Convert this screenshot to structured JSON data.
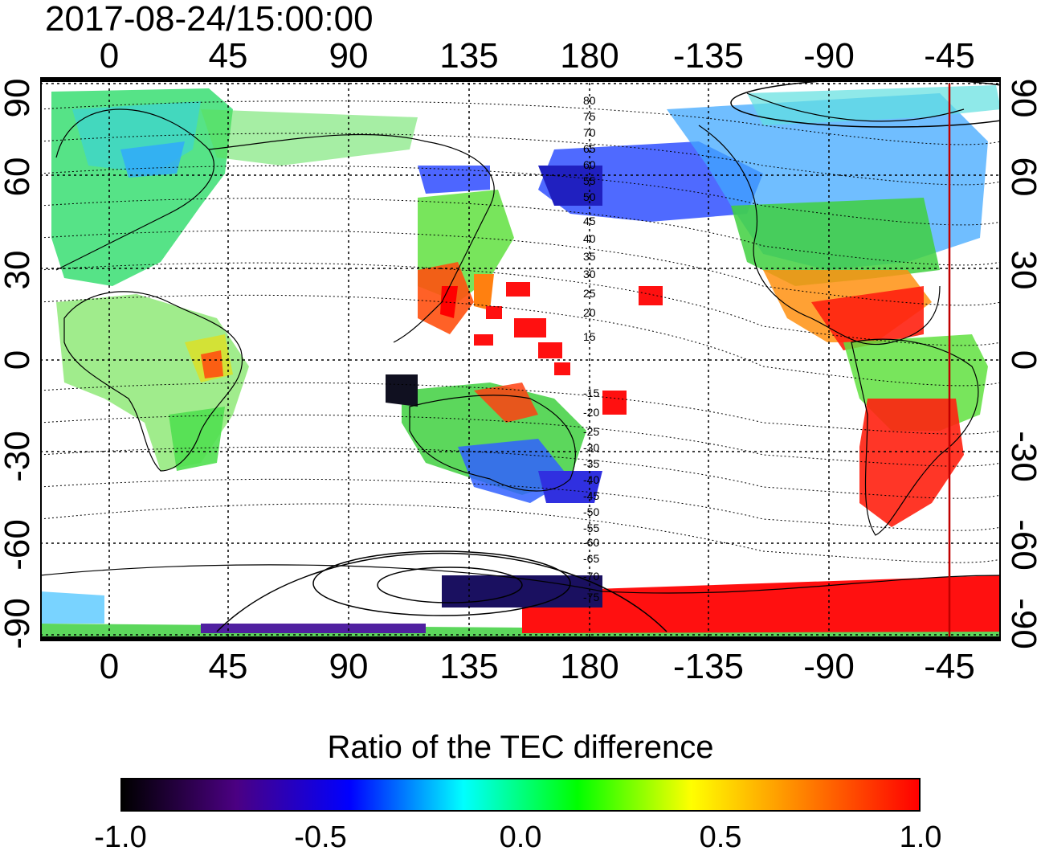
{
  "timestamp": "2017-08-24/15:00:00",
  "axes": {
    "top_ticks": [
      "0",
      "45",
      "90",
      "135",
      "180",
      "-135",
      "-90",
      "-45"
    ],
    "bottom_ticks": [
      "0",
      "45",
      "90",
      "135",
      "180",
      "-135",
      "-90",
      "-45"
    ],
    "left_ticks": [
      "90",
      "60",
      "30",
      "0",
      "-30",
      "-60",
      "-90"
    ],
    "right_ticks": [
      "90",
      "60",
      "30",
      "0",
      "-30",
      "-60",
      "-90"
    ]
  },
  "contour_labels": [
    "80",
    "75",
    "70",
    "65",
    "60",
    "55",
    "50",
    "45",
    "40",
    "35",
    "30",
    "25",
    "20",
    "15",
    "-15",
    "-20",
    "-25",
    "-30",
    "-35",
    "-40",
    "-45",
    "-50",
    "-55",
    "-60",
    "-65",
    "-70",
    "-75"
  ],
  "colorbar": {
    "title": "Ratio of the TEC difference",
    "ticks": [
      "-1.0",
      "-0.5",
      "0.0",
      "0.5",
      "1.0"
    ],
    "range": [
      -1.0,
      1.0
    ],
    "colors": [
      "#000000",
      "#4b0082",
      "#0000ff",
      "#00ffff",
      "#00ff00",
      "#ffff00",
      "#ff8000",
      "#ff0000"
    ]
  },
  "marker_longitude": "-45"
}
